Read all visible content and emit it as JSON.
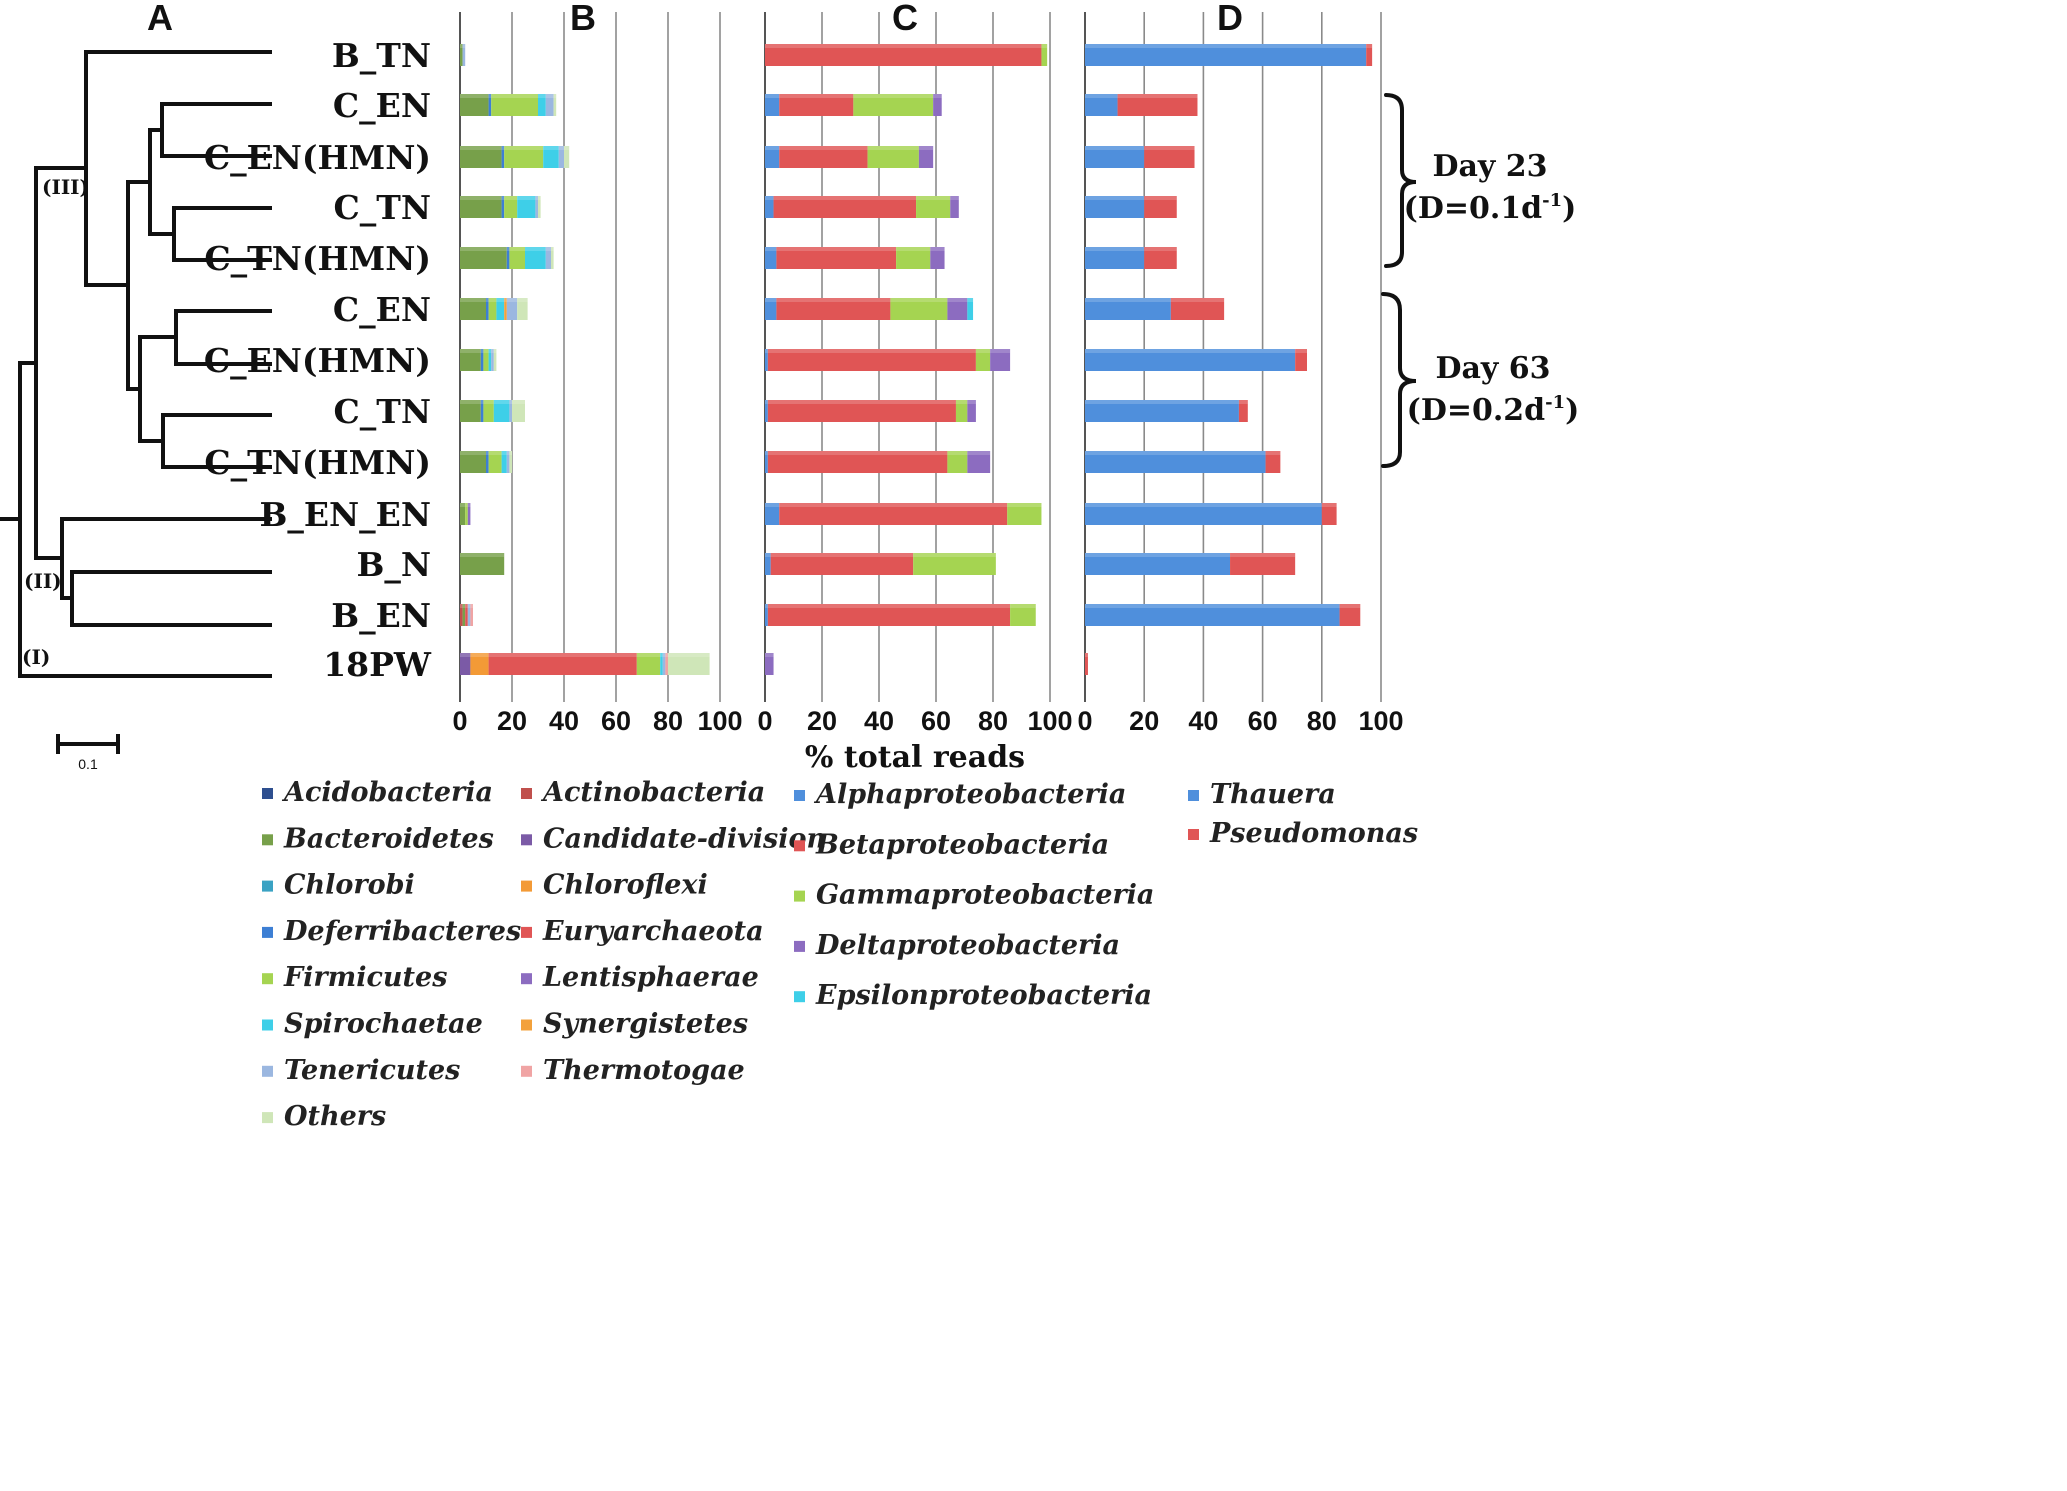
{
  "chart_data": [
    {
      "panel": "A",
      "type": "dendrogram",
      "scale_bar": "0.1",
      "clusters": [
        "(I)",
        "(II)",
        "(III)"
      ]
    },
    {
      "panel": "B",
      "type": "bar",
      "orientation": "horizontal",
      "stacked": true,
      "categories": [
        "B_TN",
        "C_EN",
        "C_EN(HMN)",
        "C_TN",
        "C_TN(HMN)",
        "C_EN",
        "C_EN(HMN)",
        "C_TN",
        "C_TN(HMN)",
        "B_EN_EN",
        "B_N",
        "B_EN",
        "18PW"
      ],
      "xlim": [
        0,
        100
      ],
      "xticks": [
        "0",
        "20",
        "40",
        "60",
        "80",
        "100"
      ],
      "series": [
        {
          "name": "Acidobacteria",
          "color": "#2e4f8f",
          "values": [
            0,
            0,
            0,
            0,
            0,
            0,
            0,
            0,
            0,
            0,
            0,
            0,
            0
          ]
        },
        {
          "name": "Actinobacteria",
          "color": "#c0504d",
          "values": [
            0,
            0,
            0,
            0,
            0,
            0,
            0,
            0,
            0,
            0,
            0,
            1,
            0
          ]
        },
        {
          "name": "Bacteroidetes",
          "color": "#77a04a",
          "values": [
            1,
            11,
            16,
            16,
            18,
            10,
            8,
            8,
            10,
            2,
            17,
            1,
            0
          ]
        },
        {
          "name": "Candidate-division",
          "color": "#7b5aa6",
          "values": [
            0,
            0,
            0,
            0,
            0,
            0,
            0,
            0,
            0,
            0,
            0,
            0,
            4
          ]
        },
        {
          "name": "Chlorobi",
          "color": "#3aa2c3",
          "values": [
            0,
            0,
            0,
            0,
            0,
            0,
            0,
            0,
            0,
            0,
            0,
            0,
            0
          ]
        },
        {
          "name": "Chloroflexi",
          "color": "#f39a36",
          "values": [
            0,
            0,
            0,
            0,
            0,
            0,
            0,
            0,
            0,
            0,
            0,
            0,
            7
          ]
        },
        {
          "name": "Deferribacteres",
          "color": "#3d7fd4",
          "values": [
            0,
            1,
            1,
            1,
            1,
            1,
            1,
            1,
            1,
            0,
            0,
            0,
            0
          ]
        },
        {
          "name": "Euryarchaeota",
          "color": "#e05555",
          "values": [
            0,
            0,
            0,
            0,
            0,
            0,
            0,
            0,
            0,
            0,
            0,
            1,
            57
          ]
        },
        {
          "name": "Firmicutes",
          "color": "#a5d451",
          "values": [
            0,
            18,
            15,
            5,
            6,
            3,
            2,
            4,
            5,
            1,
            0,
            0,
            9
          ]
        },
        {
          "name": "Lentisphaerae",
          "color": "#8c6cc0",
          "values": [
            0,
            0,
            0,
            0,
            0,
            0,
            0,
            0,
            0,
            1,
            0,
            0,
            0
          ]
        },
        {
          "name": "Spirochaetae",
          "color": "#3ecfe8",
          "values": [
            0,
            3,
            6,
            7,
            8,
            3,
            1,
            6,
            2,
            0,
            0,
            0,
            1
          ]
        },
        {
          "name": "Synergistetes",
          "color": "#f3a13b",
          "values": [
            0,
            0,
            0,
            0,
            0,
            1,
            0,
            0,
            0,
            0,
            0,
            0,
            0
          ]
        },
        {
          "name": "Tenericutes",
          "color": "#9bb7e0",
          "values": [
            1,
            3,
            2,
            1,
            2,
            4,
            1,
            1,
            1,
            0,
            0,
            1,
            1
          ]
        },
        {
          "name": "Thermotogae",
          "color": "#f0a4a4",
          "values": [
            0,
            0,
            0,
            0,
            0,
            0,
            0,
            0,
            0,
            0,
            0,
            1,
            1
          ]
        },
        {
          "name": "Others",
          "color": "#cfe6b8",
          "values": [
            0,
            1,
            2,
            1,
            1,
            4,
            1,
            5,
            1,
            0,
            0,
            0,
            16
          ]
        }
      ]
    },
    {
      "panel": "C",
      "type": "bar",
      "orientation": "horizontal",
      "stacked": true,
      "categories": [
        "B_TN",
        "C_EN",
        "C_EN(HMN)",
        "C_TN",
        "C_TN(HMN)",
        "C_EN",
        "C_EN(HMN)",
        "C_TN",
        "C_TN(HMN)",
        "B_EN_EN",
        "B_N",
        "B_EN",
        "18PW"
      ],
      "xlim": [
        0,
        100
      ],
      "xticks": [
        "0",
        "20",
        "40",
        "60",
        "80",
        "100"
      ],
      "xlabel": "% total reads",
      "series": [
        {
          "name": "Alphaproteobacteria",
          "color": "#4f8fdc",
          "values": [
            0,
            5,
            5,
            3,
            4,
            4,
            1,
            1,
            1,
            5,
            2,
            1,
            0
          ]
        },
        {
          "name": "Betaproteobacteria",
          "color": "#e05555",
          "values": [
            97,
            26,
            31,
            50,
            42,
            40,
            73,
            66,
            63,
            80,
            50,
            85,
            0
          ]
        },
        {
          "name": "Gammaproteobacteria",
          "color": "#a5d451",
          "values": [
            2,
            28,
            18,
            12,
            12,
            20,
            5,
            4,
            7,
            12,
            29,
            9,
            0
          ]
        },
        {
          "name": "Deltaproteobacteria",
          "color": "#8c6cc0",
          "values": [
            0,
            3,
            5,
            3,
            5,
            7,
            7,
            3,
            8,
            0,
            0,
            0,
            3
          ]
        },
        {
          "name": "Epsilonproteobacteria",
          "color": "#3ecfe8",
          "values": [
            0,
            0,
            0,
            0,
            0,
            2,
            0,
            0,
            0,
            0,
            0,
            0,
            0
          ]
        }
      ]
    },
    {
      "panel": "D",
      "type": "bar",
      "orientation": "horizontal",
      "stacked": true,
      "categories": [
        "B_TN",
        "C_EN",
        "C_EN(HMN)",
        "C_TN",
        "C_TN(HMN)",
        "C_EN",
        "C_EN(HMN)",
        "C_TN",
        "C_TN(HMN)",
        "B_EN_EN",
        "B_N",
        "B_EN",
        "18PW"
      ],
      "xlim": [
        0,
        100
      ],
      "xticks": [
        "0",
        "20",
        "40",
        "60",
        "80",
        "100"
      ],
      "series": [
        {
          "name": "Thauera",
          "color": "#4f8fdc",
          "values": [
            95,
            11,
            20,
            20,
            20,
            29,
            71,
            52,
            61,
            80,
            49,
            86,
            0
          ]
        },
        {
          "name": "Pseudomonas",
          "color": "#e05555",
          "values": [
            2,
            27,
            17,
            11,
            11,
            18,
            4,
            3,
            5,
            5,
            22,
            7,
            1
          ]
        }
      ]
    }
  ],
  "panels": {
    "A": "A",
    "B": "B",
    "C": "C",
    "D": "D"
  },
  "axis_title": "% total reads",
  "annotations": {
    "day23_label": "Day 23",
    "day23_rate": "(D=0.1d",
    "day63_label": "Day 63",
    "day63_rate": "(D=0.2d",
    "rate_exp": "-1",
    "rate_close": ")"
  }
}
